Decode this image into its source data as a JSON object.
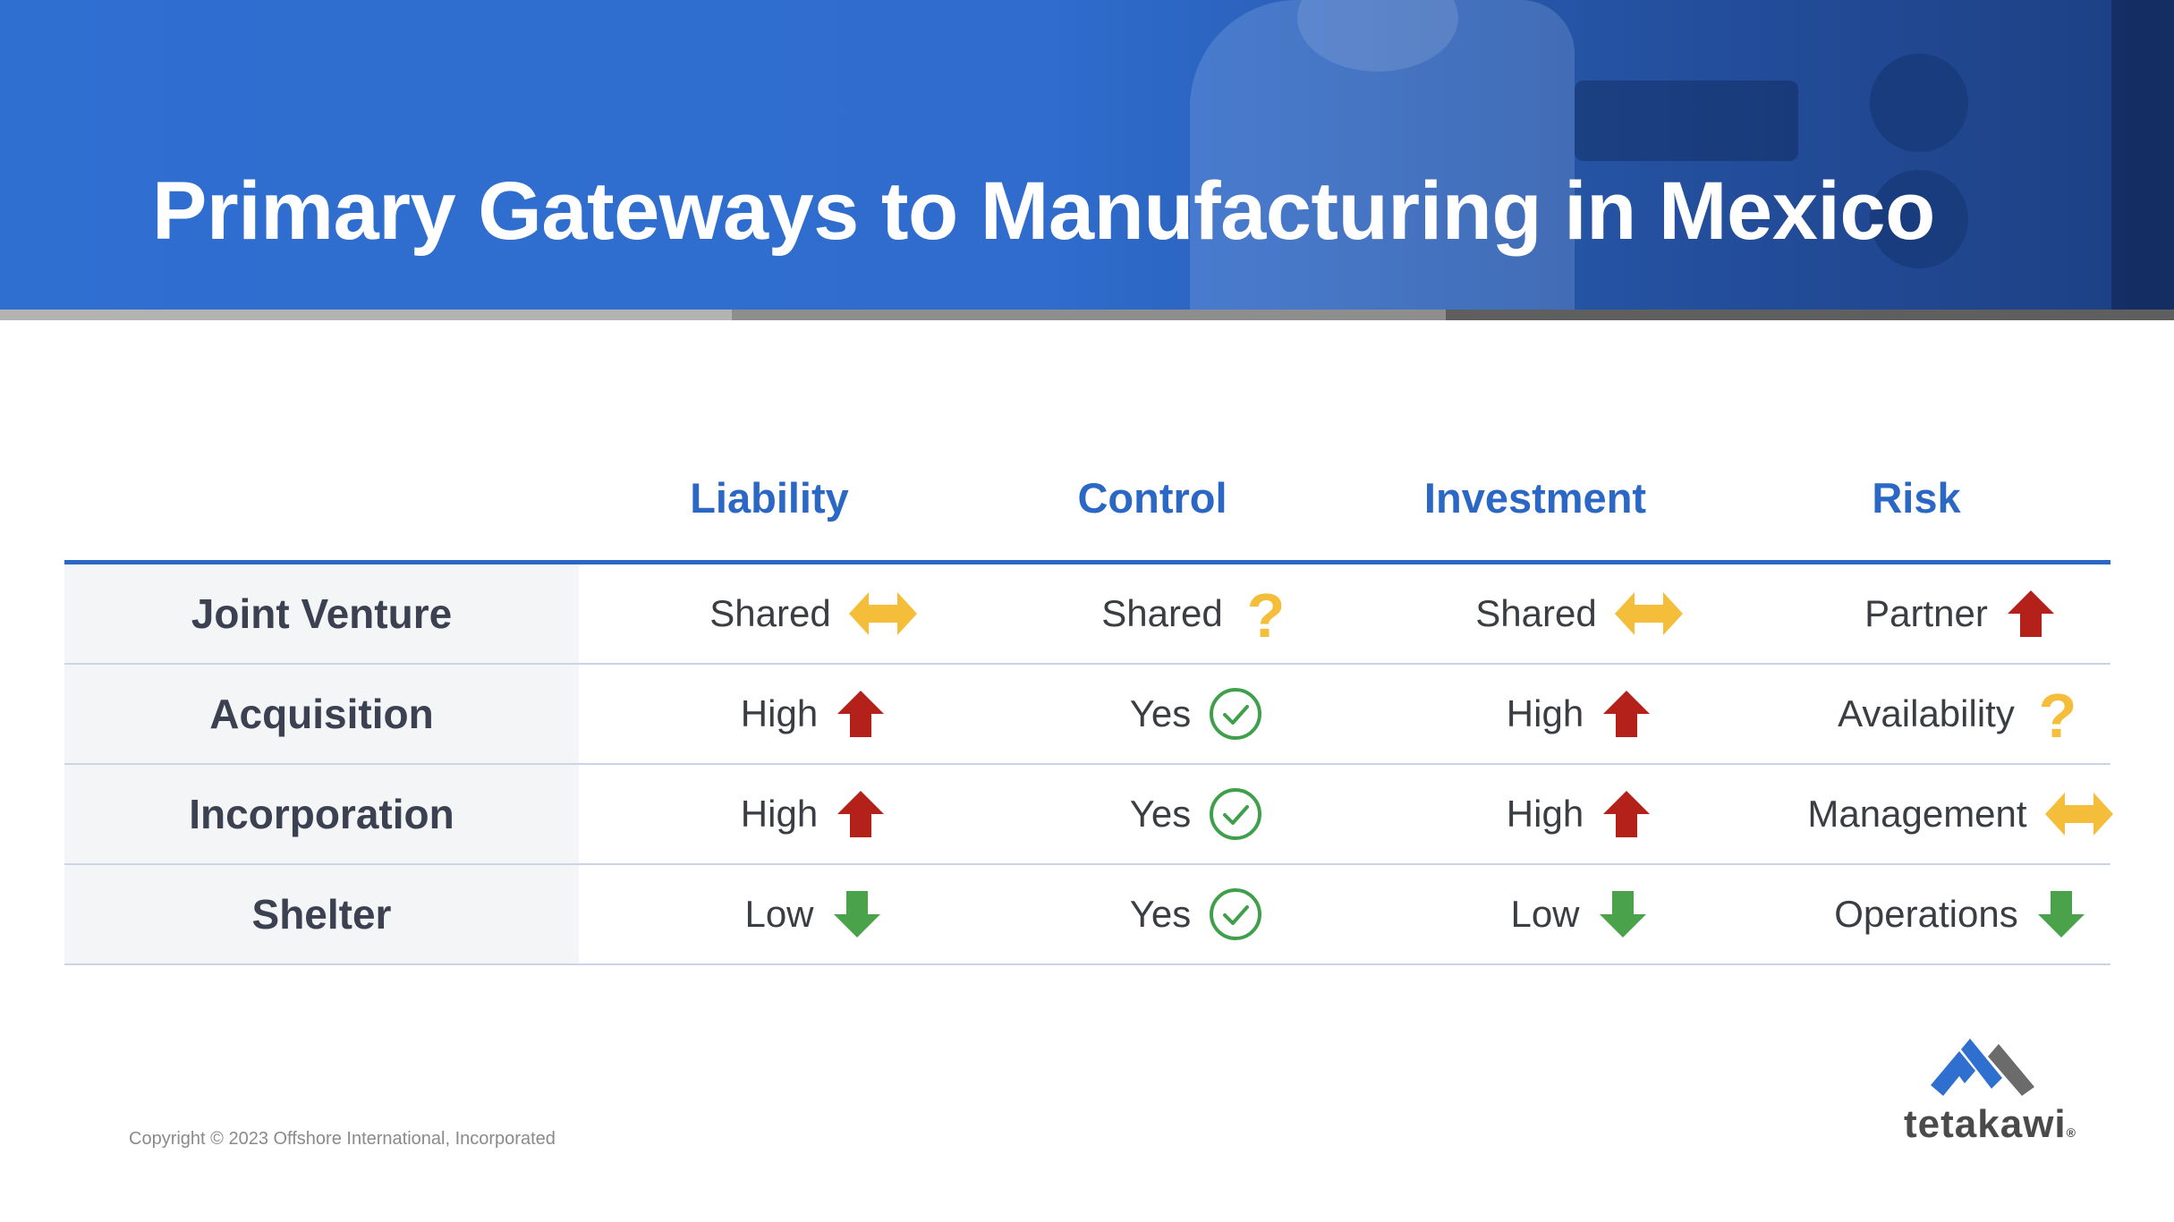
{
  "header": {
    "title": "Primary Gateways to Manufacturing in Mexico"
  },
  "table": {
    "columns": [
      "Liability",
      "Control",
      "Investment",
      "Risk"
    ],
    "rows": [
      {
        "label": "Joint Venture",
        "cells": [
          {
            "text": "Shared",
            "icon": "double-arrow-icon"
          },
          {
            "text": "Shared",
            "icon": "question-mark-icon"
          },
          {
            "text": "Shared",
            "icon": "double-arrow-icon"
          },
          {
            "text": "Partner",
            "icon": "arrow-up-icon"
          }
        ]
      },
      {
        "label": "Acquisition",
        "cells": [
          {
            "text": "High",
            "icon": "arrow-up-icon"
          },
          {
            "text": "Yes",
            "icon": "check-circle-icon"
          },
          {
            "text": "High",
            "icon": "arrow-up-icon"
          },
          {
            "text": "Availability",
            "icon": "question-mark-icon"
          }
        ]
      },
      {
        "label": "Incorporation",
        "cells": [
          {
            "text": "High",
            "icon": "arrow-up-icon"
          },
          {
            "text": "Yes",
            "icon": "check-circle-icon"
          },
          {
            "text": "High",
            "icon": "arrow-up-icon"
          },
          {
            "text": "Management",
            "icon": "double-arrow-icon"
          }
        ]
      },
      {
        "label": "Shelter",
        "cells": [
          {
            "text": "Low",
            "icon": "arrow-down-icon"
          },
          {
            "text": "Yes",
            "icon": "check-circle-icon"
          },
          {
            "text": "Low",
            "icon": "arrow-down-icon"
          },
          {
            "text": "Operations",
            "icon": "arrow-down-icon"
          }
        ]
      }
    ]
  },
  "colors": {
    "header_blue": "#2f6fd0",
    "column_heading": "#2b67c4",
    "up_arrow": "#b3211a",
    "down_arrow": "#4aa24a",
    "double_arrow": "#f5be3a",
    "question_mark": "#f5be3a",
    "check_circle": "#3f9f4a"
  },
  "footer": {
    "copyright": "Copyright © 2023 Offshore International, Incorporated"
  },
  "logo": {
    "text": "tetakawi",
    "registered": "®"
  }
}
